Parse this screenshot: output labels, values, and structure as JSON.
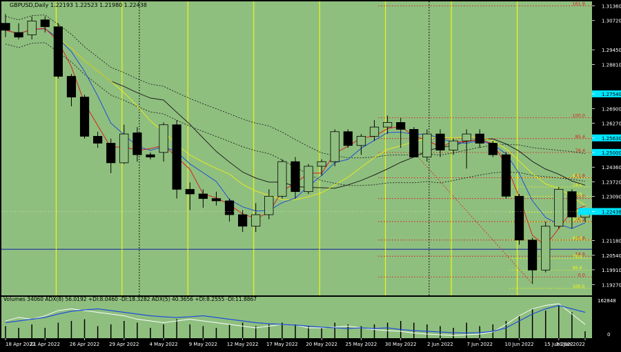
{
  "colors": {
    "background": "#8fbf7f",
    "frame": "#000000",
    "bull_candle": "#8fbf7f",
    "bear_candle": "#000000",
    "vline": "#ffff00",
    "ma_red": "#d62020",
    "ma_blue": "#1f4ed8",
    "ma_yellow": "#e8e820",
    "ma_black": "#202020",
    "bollinger": "#202020",
    "fib": "#d62020",
    "horizontal": "#1f2fa0",
    "price_tag": "#00e5ff",
    "adx_blue": "#1f4ed8",
    "adx_white": "#ffffff",
    "volume": "#000000"
  },
  "header": {
    "symbol_line": "GBPUSD,Daily  1.22193 1.22523 1.21980 1.22438"
  },
  "subpanel": {
    "caption": "Volumes 34060  ADX(8) 56.0192 +DI:8.0460 -DI:18.3282  ADX(5) 40.3656 +DI:8.2555 -DI:11.8867",
    "axis_labels": [
      "162848",
      "0"
    ]
  },
  "chart_data": {
    "type": "candlestick",
    "title": "GBPUSD,Daily",
    "ohlc_header": [
      1.22193,
      1.22523,
      1.2198,
      1.22438
    ],
    "y_axis": {
      "range": [
        1.188,
        1.3155
      ],
      "ticks": [
        "1.31360",
        "1.30720",
        "1.29450",
        "1.28810",
        "1.27540",
        "1.26900",
        "1.26270",
        "1.25630",
        "1.25000",
        "1.24360",
        "1.23720",
        "1.23090",
        "1.22438",
        "1.21180",
        "1.20540",
        "1.19910",
        "1.19270"
      ],
      "highlight_ticks": [
        1.2754,
        1.2563,
        1.25,
        1.2244
      ]
    },
    "x_labels": [
      "18 Apr 2022",
      "21 Apr 2022",
      "26 Apr 2022",
      "29 Apr 2022",
      "4 May 2022",
      "9 May 2022",
      "12 May 2022",
      "17 May 2022",
      "20 May 2022",
      "25 May 2022",
      "30 May 2022",
      "2 Jun 2022",
      "7 Jun 2022",
      "10 Jun 2022",
      "15 Jun 2022",
      "20 Jun 2022"
    ],
    "candles": [
      {
        "o": 1.306,
        "h": 1.31,
        "l": 1.3,
        "c": 1.303
      },
      {
        "o": 1.302,
        "h": 1.306,
        "l": 1.299,
        "c": 1.3
      },
      {
        "o": 1.301,
        "h": 1.309,
        "l": 1.299,
        "c": 1.307
      },
      {
        "o": 1.3075,
        "h": 1.309,
        "l": 1.302,
        "c": 1.3045
      },
      {
        "o": 1.3045,
        "h": 1.306,
        "l": 1.282,
        "c": 1.283
      },
      {
        "o": 1.283,
        "h": 1.284,
        "l": 1.27,
        "c": 1.274
      },
      {
        "o": 1.274,
        "h": 1.275,
        "l": 1.256,
        "c": 1.257
      },
      {
        "o": 1.257,
        "h": 1.259,
        "l": 1.252,
        "c": 1.254
      },
      {
        "o": 1.254,
        "h": 1.256,
        "l": 1.241,
        "c": 1.2455
      },
      {
        "o": 1.2455,
        "h": 1.262,
        "l": 1.245,
        "c": 1.258
      },
      {
        "o": 1.2585,
        "h": 1.261,
        "l": 1.246,
        "c": 1.249
      },
      {
        "o": 1.249,
        "h": 1.25,
        "l": 1.247,
        "c": 1.248
      },
      {
        "o": 1.25,
        "h": 1.263,
        "l": 1.246,
        "c": 1.262
      },
      {
        "o": 1.262,
        "h": 1.264,
        "l": 1.23,
        "c": 1.234
      },
      {
        "o": 1.234,
        "h": 1.237,
        "l": 1.225,
        "c": 1.232
      },
      {
        "o": 1.232,
        "h": 1.234,
        "l": 1.226,
        "c": 1.23
      },
      {
        "o": 1.23,
        "h": 1.233,
        "l": 1.227,
        "c": 1.229
      },
      {
        "o": 1.229,
        "h": 1.23,
        "l": 1.22,
        "c": 1.223
      },
      {
        "o": 1.223,
        "h": 1.225,
        "l": 1.2155,
        "c": 1.218
      },
      {
        "o": 1.218,
        "h": 1.228,
        "l": 1.2155,
        "c": 1.223
      },
      {
        "o": 1.223,
        "h": 1.234,
        "l": 1.221,
        "c": 1.231
      },
      {
        "o": 1.231,
        "h": 1.247,
        "l": 1.23,
        "c": 1.246
      },
      {
        "o": 1.246,
        "h": 1.248,
        "l": 1.23,
        "c": 1.233
      },
      {
        "o": 1.233,
        "h": 1.245,
        "l": 1.232,
        "c": 1.244
      },
      {
        "o": 1.244,
        "h": 1.247,
        "l": 1.24,
        "c": 1.246
      },
      {
        "o": 1.246,
        "h": 1.26,
        "l": 1.244,
        "c": 1.259
      },
      {
        "o": 1.259,
        "h": 1.26,
        "l": 1.252,
        "c": 1.253
      },
      {
        "o": 1.253,
        "h": 1.258,
        "l": 1.249,
        "c": 1.257
      },
      {
        "o": 1.257,
        "h": 1.264,
        "l": 1.255,
        "c": 1.261
      },
      {
        "o": 1.261,
        "h": 1.266,
        "l": 1.258,
        "c": 1.263
      },
      {
        "o": 1.263,
        "h": 1.265,
        "l": 1.252,
        "c": 1.26
      },
      {
        "o": 1.26,
        "h": 1.261,
        "l": 1.248,
        "c": 1.248
      },
      {
        "o": 1.248,
        "h": 1.26,
        "l": 1.246,
        "c": 1.258
      },
      {
        "o": 1.258,
        "h": 1.26,
        "l": 1.248,
        "c": 1.251
      },
      {
        "o": 1.251,
        "h": 1.256,
        "l": 1.249,
        "c": 1.255
      },
      {
        "o": 1.255,
        "h": 1.26,
        "l": 1.243,
        "c": 1.258
      },
      {
        "o": 1.258,
        "h": 1.26,
        "l": 1.252,
        "c": 1.254
      },
      {
        "o": 1.254,
        "h": 1.255,
        "l": 1.248,
        "c": 1.249
      },
      {
        "o": 1.249,
        "h": 1.25,
        "l": 1.23,
        "c": 1.231
      },
      {
        "o": 1.231,
        "h": 1.232,
        "l": 1.21,
        "c": 1.212
      },
      {
        "o": 1.212,
        "h": 1.213,
        "l": 1.193,
        "c": 1.199
      },
      {
        "o": 1.199,
        "h": 1.22,
        "l": 1.198,
        "c": 1.218
      },
      {
        "o": 1.218,
        "h": 1.235,
        "l": 1.217,
        "c": 1.234
      },
      {
        "o": 1.233,
        "h": 1.234,
        "l": 1.217,
        "c": 1.222
      },
      {
        "o": 1.2219,
        "h": 1.2252,
        "l": 1.2198,
        "c": 1.2244
      }
    ],
    "fib_levels": [
      {
        "label": "161.8",
        "value": 1.3136
      },
      {
        "label": "100.0",
        "value": 1.265
      },
      {
        "label": "85.4",
        "value": 1.256
      },
      {
        "label": "76.4",
        "value": 1.25
      },
      {
        "label": "61.8",
        "value": 1.239
      },
      {
        "label": "50.0",
        "value": 1.23
      },
      {
        "label": "38.2",
        "value": 1.22
      },
      {
        "label": "23.6",
        "value": 1.212
      },
      {
        "label": "14.6",
        "value": 1.205
      },
      {
        "label": "0.0",
        "value": 1.196
      }
    ],
    "fib_levels_right": [
      {
        "label": "0.0",
        "value": 1.239
      },
      {
        "label": "14.6",
        "value": 1.235
      },
      {
        "label": "23.6",
        "value": 1.231
      },
      {
        "label": "38.2",
        "value": 1.224
      },
      {
        "label": "50.0",
        "value": 1.22
      },
      {
        "label": "61.8",
        "value": 1.212
      },
      {
        "label": "76.4",
        "value": 1.204
      },
      {
        "label": "85.4",
        "value": 1.199
      },
      {
        "label": "100.0",
        "value": 1.191
      }
    ],
    "horizontal_line": 1.208,
    "volumes": [
      0.35,
      0.3,
      0.4,
      0.3,
      0.45,
      0.5,
      0.55,
      0.35,
      0.4,
      0.5,
      0.45,
      0.3,
      0.4,
      0.55,
      0.4,
      0.35,
      0.3,
      0.4,
      0.45,
      0.35,
      0.4,
      0.45,
      0.4,
      0.35,
      0.3,
      0.45,
      0.4,
      0.35,
      0.4,
      0.45,
      0.5,
      0.45,
      0.4,
      0.35,
      0.3,
      0.45,
      0.35,
      0.4,
      0.5,
      0.65,
      0.85,
      0.8,
      0.95,
      0.75,
      0.2
    ],
    "adx_blue": [
      0.45,
      0.5,
      0.55,
      0.6,
      0.7,
      0.78,
      0.82,
      0.85,
      0.8,
      0.75,
      0.7,
      0.65,
      0.62,
      0.6,
      0.62,
      0.65,
      0.6,
      0.55,
      0.5,
      0.45,
      0.42,
      0.4,
      0.38,
      0.35,
      0.32,
      0.3,
      0.28,
      0.3,
      0.28,
      0.3,
      0.25,
      0.22,
      0.2,
      0.18,
      0.16,
      0.15,
      0.16,
      0.2,
      0.3,
      0.5,
      0.7,
      0.85,
      0.95,
      0.85,
      0.75
    ],
    "adx_white": [
      0.5,
      0.6,
      0.55,
      0.65,
      0.8,
      0.85,
      0.8,
      0.75,
      0.7,
      0.65,
      0.55,
      0.5,
      0.45,
      0.5,
      0.55,
      0.5,
      0.45,
      0.4,
      0.35,
      0.3,
      0.35,
      0.4,
      0.38,
      0.3,
      0.3,
      0.32,
      0.35,
      0.3,
      0.25,
      0.22,
      0.2,
      0.15,
      0.12,
      0.1,
      0.08,
      0.1,
      0.12,
      0.18,
      0.4,
      0.65,
      0.85,
      0.95,
      1.0,
      0.7,
      0.4
    ]
  }
}
